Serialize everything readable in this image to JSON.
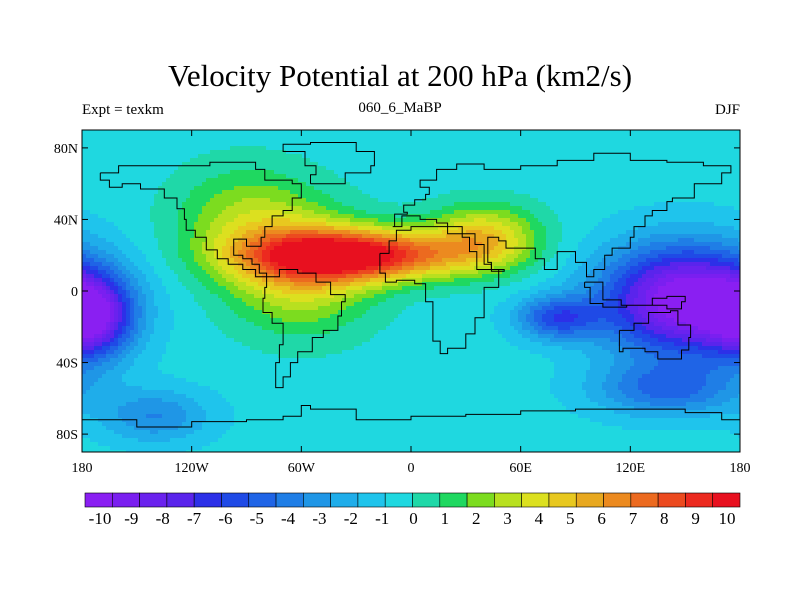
{
  "title": "Velocity Potential at 200 hPa (km2/s)",
  "left_label": "Expt = texkm",
  "center_label": "060_6_MaBP",
  "right_label": "DJF",
  "y_ticks": [
    {
      "lat": 80,
      "label": "80N"
    },
    {
      "lat": 40,
      "label": "40N"
    },
    {
      "lat": 0,
      "label": "0"
    },
    {
      "lat": -40,
      "label": "40S"
    },
    {
      "lat": -80,
      "label": "80S"
    }
  ],
  "x_ticks": [
    {
      "lon": -180,
      "label": "180"
    },
    {
      "lon": -120,
      "label": "120W"
    },
    {
      "lon": -60,
      "label": "60W"
    },
    {
      "lon": 0,
      "label": "0"
    },
    {
      "lon": 60,
      "label": "60E"
    },
    {
      "lon": 120,
      "label": "120E"
    },
    {
      "lon": 180,
      "label": "180"
    }
  ],
  "colorbar": {
    "labels": [
      "-10",
      "-9",
      "-8",
      "-7",
      "-6",
      "-5",
      "-4",
      "-3",
      "-2",
      "-1",
      "0",
      "1",
      "2",
      "3",
      "4",
      "5",
      "6",
      "7",
      "8",
      "9",
      "10"
    ],
    "colors": [
      "#8a1ff2",
      "#7a1ff0",
      "#6a22ee",
      "#5a24ec",
      "#2c30e8",
      "#1f4ae6",
      "#1f64e6",
      "#1f7ee6",
      "#1f96e6",
      "#1fadea",
      "#1fc4ec",
      "#1fd8e0",
      "#1fd8a8",
      "#1fd860",
      "#7cdc1f",
      "#b8e01f",
      "#dce01f",
      "#e8c81f",
      "#e8a81f",
      "#ec8a1f",
      "#ec6a1f",
      "#ec4a1f",
      "#ec2a1f",
      "#e8101f"
    ]
  },
  "map_data": {
    "lon_range": [
      -180,
      180
    ],
    "lat_range": [
      -90,
      90
    ],
    "field": [
      {
        "lon": -30,
        "lat": 20,
        "value": 10.5,
        "sx": 55,
        "sy": 14
      },
      {
        "lon": -60,
        "lat": 10,
        "value": 4.5,
        "sx": 40,
        "sy": 32
      },
      {
        "lon": 40,
        "lat": 30,
        "value": 5,
        "sx": 30,
        "sy": 18
      },
      {
        "lon": -90,
        "lat": 40,
        "value": 3,
        "sx": 40,
        "sy": 30
      },
      {
        "lon": 150,
        "lat": -5,
        "value": -10.5,
        "sx": 45,
        "sy": 30
      },
      {
        "lon": 80,
        "lat": -15,
        "value": -5,
        "sx": 22,
        "sy": 12
      },
      {
        "lon": -175,
        "lat": -15,
        "value": -7,
        "sx": 22,
        "sy": 22
      },
      {
        "lon": -140,
        "lat": -70,
        "value": -3,
        "sx": 30,
        "sy": 15
      },
      {
        "lon": 140,
        "lat": -55,
        "value": -4,
        "sx": 40,
        "sy": 15
      }
    ],
    "base_value": -0.5,
    "coastline_note": "coarse model land-sea mask"
  }
}
